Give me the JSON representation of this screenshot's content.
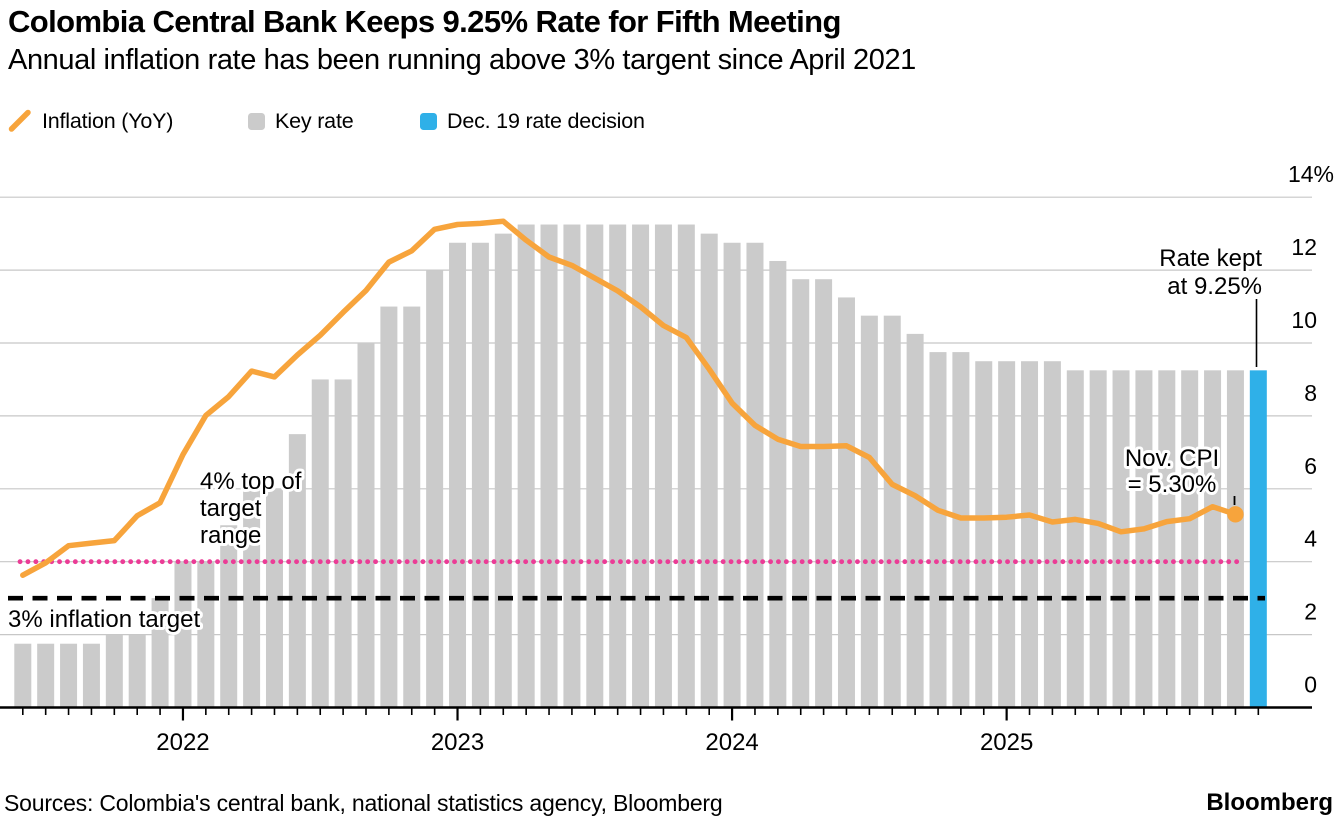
{
  "header": {},
  "legend": {
    "items": [
      {
        "label": "Inflation (YoY)",
        "swatch": "line"
      },
      {
        "label": "Key rate",
        "swatch": "square-gray"
      },
      {
        "label": "Dec. 19 rate decision",
        "swatch": "square-blue"
      }
    ]
  },
  "colors": {
    "inflation": "#F7A43C",
    "key_rate": "#CBCBCB",
    "decision": "#2FB0E8",
    "target_range_line": "#EB3C96",
    "inflation_target_line": "#000000",
    "gridline": "#C7C7C7",
    "axis": "#000000"
  },
  "annotations": {
    "target_range": {
      "line1": "4% top of",
      "line2": "target",
      "line3": "range"
    },
    "inflation_target": {
      "text": "3% inflation target"
    },
    "rate_kept": {
      "line1": "Rate kept",
      "line2": "at 9.25%"
    },
    "nov_cpi": {
      "line1": "Nov. CPI",
      "line2": "= 5.30%"
    }
  },
  "footer": {
    "sources": "Sources: Colombia's central bank, national statistics agency, Bloomberg",
    "brand": "Bloomberg"
  },
  "chart_data": {
    "type": "bar+line",
    "title": "Colombia Central Bank Keeps 9.25% Rate for Fifth Meeting",
    "subtitle": "Annual inflation rate has been running above 3% targent since April 2021",
    "start_month": "2021-06",
    "end_month": "2025-12",
    "ylim": [
      0,
      14
    ],
    "yticks": [
      0,
      2,
      4,
      6,
      8,
      10,
      12,
      14
    ],
    "ytick_labels": [
      "0",
      "2",
      "4",
      "6",
      "8",
      "10",
      "12",
      "14%"
    ],
    "grid": "horizontal",
    "legend_position": "top",
    "year_ticks": [
      {
        "label": "2022",
        "index": 7
      },
      {
        "label": "2023",
        "index": 19
      },
      {
        "label": "2024",
        "index": 31
      },
      {
        "label": "2025",
        "index": 43
      }
    ],
    "series": [
      {
        "name": "Key rate",
        "type": "bar",
        "color_key": "key_rate",
        "months": "2021-06 .. 2025-11",
        "values": [
          1.75,
          1.75,
          1.75,
          1.75,
          2.0,
          2.0,
          3.0,
          4.0,
          4.0,
          5.0,
          6.0,
          6.0,
          7.5,
          9.0,
          9.0,
          10.0,
          11.0,
          11.0,
          12.0,
          12.75,
          12.75,
          13.0,
          13.25,
          13.25,
          13.25,
          13.25,
          13.25,
          13.25,
          13.25,
          13.25,
          13.0,
          12.75,
          12.75,
          12.25,
          11.75,
          11.75,
          11.25,
          10.75,
          10.75,
          10.25,
          9.75,
          9.75,
          9.5,
          9.5,
          9.5,
          9.5,
          9.25,
          9.25,
          9.25,
          9.25,
          9.25,
          9.25,
          9.25,
          9.25
        ]
      },
      {
        "name": "Dec. 19 rate decision",
        "type": "bar",
        "color_key": "decision",
        "month": "2025-12",
        "index": 54,
        "value": 9.25
      },
      {
        "name": "Inflation (YoY)",
        "type": "line",
        "color_key": "inflation",
        "months": "2021-06 .. 2025-11",
        "values": [
          3.63,
          3.97,
          4.44,
          4.51,
          4.58,
          5.26,
          5.62,
          6.94,
          8.01,
          8.53,
          9.23,
          9.07,
          9.67,
          10.21,
          10.84,
          11.44,
          12.22,
          12.53,
          13.12,
          13.25,
          13.28,
          13.34,
          12.82,
          12.36,
          12.13,
          11.78,
          11.43,
          10.99,
          10.48,
          10.15,
          9.28,
          8.35,
          7.74,
          7.36,
          7.16,
          7.16,
          7.18,
          6.86,
          6.12,
          5.81,
          5.41,
          5.2,
          5.2,
          5.22,
          5.28,
          5.09,
          5.16,
          5.05,
          4.82,
          4.9,
          5.1,
          5.18,
          5.51,
          5.3
        ],
        "endpoint_value": 5.3
      }
    ],
    "reference_lines": [
      {
        "name": "4% top of target range",
        "value": 4.0,
        "style": "dotted",
        "color_key": "target_range_line"
      },
      {
        "name": "3% inflation target",
        "value": 3.0,
        "style": "dashed",
        "color_key": "inflation_target_line"
      }
    ]
  }
}
